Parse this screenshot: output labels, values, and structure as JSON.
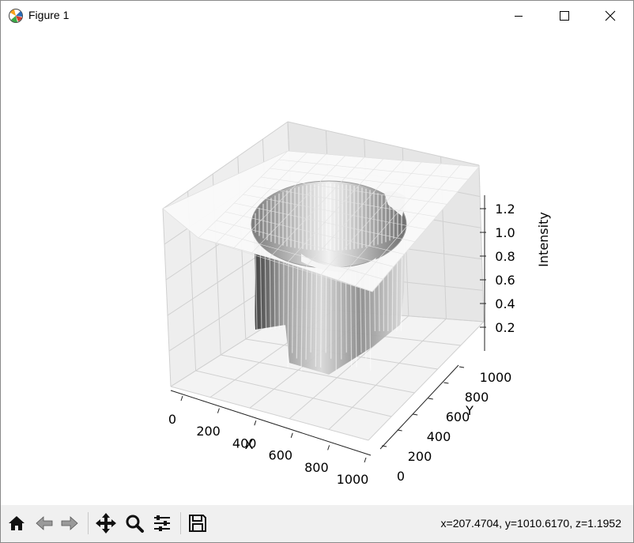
{
  "window": {
    "title": "Figure 1",
    "icons": {
      "app": "matplotlib-icon",
      "minimize": "minimize-icon",
      "maximize": "maximize-icon",
      "close": "close-icon"
    }
  },
  "toolbar": {
    "tools": [
      {
        "name": "home-icon",
        "label": "Home"
      },
      {
        "name": "back-icon",
        "label": "Back"
      },
      {
        "name": "forward-icon",
        "label": "Forward"
      },
      {
        "name": "pan-icon",
        "label": "Pan"
      },
      {
        "name": "zoom-icon",
        "label": "Zoom"
      },
      {
        "name": "configure-subplots-icon",
        "label": "Configure subplots"
      },
      {
        "name": "save-icon",
        "label": "Save"
      }
    ],
    "coordinates": "x=207.4704, y=1010.6170, z=1.1952"
  },
  "chart_data": {
    "type": "surface3d",
    "xlabel": "X",
    "ylabel": "Y",
    "zlabel": "Intensity",
    "xticks": [
      "0",
      "200",
      "400",
      "600",
      "800",
      "1000"
    ],
    "yticks": [
      "0",
      "200",
      "400",
      "600",
      "800",
      "1000"
    ],
    "zticks": [
      "0.2",
      "0.4",
      "0.6",
      "0.8",
      "1.0",
      "1.2"
    ],
    "xlim": [
      0,
      1000
    ],
    "ylim": [
      0,
      1000
    ],
    "zlim": [
      0.1,
      1.3
    ],
    "colormap": "grayscale",
    "grid": true,
    "description_values": {
      "plateau_z": 1.2,
      "well_center": [
        500,
        500
      ],
      "well_outer_radius": 400,
      "well_floor_z": 0.05
    }
  }
}
